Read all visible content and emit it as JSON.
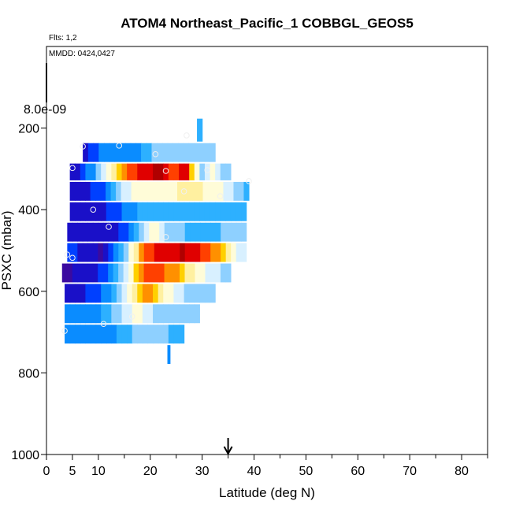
{
  "chart_data": {
    "type": "heatmap",
    "title": "ATOM4 Northeast_Pacific_1 COBBGL_GEOS5",
    "flights_label": "Flts: 1,2",
    "dates_label": "MMDD: 0424,0427",
    "colorscale_max_label": "8.0e-09",
    "xlabel": "Latitude (deg N)",
    "ylabel": "PSXC (mbar)",
    "xlim": [
      0,
      85
    ],
    "ylim": [
      1000,
      0
    ],
    "x_ticks": [
      0,
      5,
      10,
      20,
      30,
      40,
      50,
      60,
      70,
      80
    ],
    "y_ticks": [
      200,
      400,
      600,
      800,
      1000
    ],
    "arrow_latitude": 35,
    "colormap": [
      "#3a0aa0",
      "#1a10c8",
      "#0040ff",
      "#0a8cff",
      "#2db0ff",
      "#8ed0ff",
      "#d8f0ff",
      "#fffcd8",
      "#fff0a0",
      "#ffd000",
      "#ff9000",
      "#ff4000",
      "#e00000",
      "#b00000"
    ],
    "bands": [
      {
        "p_top": 175,
        "p_bot": 235,
        "lat_start": 29,
        "lat_end": 30,
        "values": [
          4
        ]
      },
      {
        "p_top": 235,
        "p_bot": 285,
        "lat_start": 7,
        "lat_end": 32.5,
        "values": [
          1,
          2,
          2,
          3,
          3,
          3,
          3,
          3,
          3,
          3,
          3,
          4,
          4,
          5,
          5,
          5,
          5,
          5,
          5,
          5,
          5,
          5,
          5,
          5,
          5
        ]
      },
      {
        "p_top": 285,
        "p_bot": 330,
        "lat_start": 4.5,
        "lat_end": 35.5,
        "values": [
          1,
          1,
          2,
          3,
          3,
          5,
          6,
          7,
          8,
          9,
          10,
          11,
          11,
          12,
          12,
          12,
          13,
          13,
          12,
          11,
          11,
          12,
          12,
          9,
          7,
          5,
          6,
          7,
          6,
          5,
          5
        ]
      },
      {
        "p_top": 330,
        "p_bot": 380,
        "lat_start": 4.5,
        "lat_end": 39,
        "values": [
          1,
          1,
          1,
          1,
          2,
          2,
          2,
          3,
          4,
          5,
          6,
          6,
          7,
          7,
          7,
          7,
          7,
          7,
          7,
          7,
          7,
          8,
          8,
          8,
          8,
          8,
          7,
          7,
          7,
          7,
          6,
          6,
          5,
          5,
          4
        ]
      },
      {
        "p_top": 380,
        "p_bot": 430,
        "lat_start": 4.5,
        "lat_end": 38.5,
        "values": [
          1,
          1,
          1,
          1,
          1,
          1,
          1,
          2,
          2,
          2,
          3,
          3,
          3,
          4,
          4,
          4,
          4,
          4,
          4,
          4,
          4,
          4,
          4,
          4,
          4,
          4,
          4,
          4,
          4,
          4,
          4,
          4,
          4,
          4
        ]
      },
      {
        "p_top": 430,
        "p_bot": 480,
        "lat_start": 4,
        "lat_end": 38.5,
        "values": [
          1,
          1,
          1,
          1,
          1,
          1,
          1,
          1,
          1,
          1,
          2,
          2,
          3,
          4,
          5,
          6,
          7,
          7,
          6,
          5,
          5,
          5,
          5,
          4,
          4,
          4,
          4,
          4,
          4,
          4,
          5,
          5,
          5,
          5,
          5
        ]
      },
      {
        "p_top": 480,
        "p_bot": 530,
        "lat_start": 4,
        "lat_end": 38.5,
        "values": [
          2,
          2,
          1,
          1,
          1,
          1,
          0,
          1,
          2,
          3,
          4,
          5,
          7,
          8,
          10,
          11,
          11,
          12,
          12,
          12,
          12,
          12,
          13,
          12,
          12,
          12,
          11,
          11,
          10,
          10,
          9,
          8,
          7,
          6,
          6
        ]
      },
      {
        "p_top": 530,
        "p_bot": 580,
        "lat_start": 3,
        "lat_end": 35.5,
        "values": [
          0,
          0,
          1,
          1,
          1,
          1,
          1,
          2,
          2,
          3,
          4,
          5,
          6,
          7,
          9,
          10,
          11,
          11,
          11,
          11,
          10,
          10,
          10,
          9,
          8,
          8,
          7,
          7,
          6,
          6,
          6,
          5,
          5
        ]
      },
      {
        "p_top": 580,
        "p_bot": 630,
        "lat_start": 3.5,
        "lat_end": 32.5,
        "values": [
          1,
          1,
          1,
          1,
          2,
          2,
          2,
          3,
          3,
          4,
          5,
          6,
          7,
          8,
          9,
          10,
          10,
          9,
          8,
          7,
          7,
          6,
          6,
          5,
          5,
          5,
          5,
          5,
          5
        ]
      },
      {
        "p_top": 630,
        "p_bot": 680,
        "lat_start": 3.5,
        "lat_end": 29.5,
        "values": [
          3,
          3,
          3,
          3,
          3,
          3,
          3,
          4,
          4,
          5,
          5,
          6,
          6,
          7,
          7,
          6,
          6,
          5,
          5,
          5,
          5,
          5,
          5,
          5,
          5,
          5
        ]
      },
      {
        "p_top": 680,
        "p_bot": 730,
        "lat_start": 3.5,
        "lat_end": 26.5,
        "values": [
          3,
          3,
          3,
          3,
          3,
          3,
          3,
          3,
          3,
          3,
          4,
          4,
          4,
          5,
          5,
          5,
          5,
          5,
          5,
          5,
          4,
          4,
          4
        ]
      },
      {
        "p_top": 730,
        "p_bot": 780,
        "lat_start": 23.3,
        "lat_end": 23.8,
        "values": [
          3
        ]
      }
    ],
    "points": [
      {
        "lat": 7,
        "p": 245
      },
      {
        "lat": 14,
        "p": 243
      },
      {
        "lat": 27,
        "p": 218
      },
      {
        "lat": 21,
        "p": 264
      },
      {
        "lat": 5,
        "p": 298
      },
      {
        "lat": 23,
        "p": 305
      },
      {
        "lat": 31,
        "p": 303
      },
      {
        "lat": 39,
        "p": 330
      },
      {
        "lat": 26.5,
        "p": 355
      },
      {
        "lat": 33.5,
        "p": 367
      },
      {
        "lat": 9,
        "p": 400
      },
      {
        "lat": 12,
        "p": 442
      },
      {
        "lat": 23,
        "p": 467
      },
      {
        "lat": 4,
        "p": 510
      },
      {
        "lat": 5,
        "p": 518
      },
      {
        "lat": 11,
        "p": 680
      },
      {
        "lat": 16.5,
        "p": 662
      },
      {
        "lat": 3.5,
        "p": 697
      }
    ]
  }
}
